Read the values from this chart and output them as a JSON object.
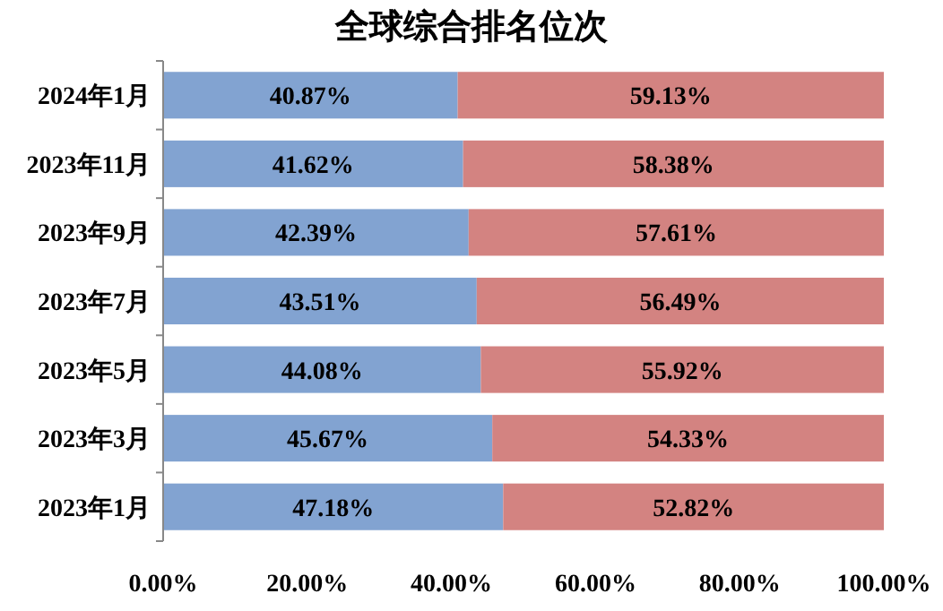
{
  "chart_data": {
    "type": "bar",
    "orientation": "horizontal",
    "stacked": true,
    "title": "全球综合排名位次",
    "categories": [
      "2024年1月",
      "2023年11月",
      "2023年9月",
      "2023年7月",
      "2023年5月",
      "2023年3月",
      "2023年1月"
    ],
    "series": [
      {
        "color": "#82a3d1",
        "values": [
          40.87,
          41.62,
          42.39,
          43.51,
          44.08,
          45.67,
          47.18
        ],
        "value_labels": [
          "40.87%",
          "41.62%",
          "42.39%",
          "43.51%",
          "44.08%",
          "45.67%",
          "47.18%"
        ]
      },
      {
        "color": "#d38381",
        "values": [
          59.13,
          58.38,
          57.61,
          56.49,
          55.92,
          54.33,
          52.82
        ],
        "value_labels": [
          "59.13%",
          "58.38%",
          "57.61%",
          "56.49%",
          "55.92%",
          "54.33%",
          "52.82%"
        ]
      }
    ],
    "xlim": [
      0,
      100
    ],
    "xticks": [
      {
        "value": 0,
        "label": "0.00%"
      },
      {
        "value": 20,
        "label": "20.00%"
      },
      {
        "value": 40,
        "label": "40.00%"
      },
      {
        "value": 60,
        "label": "60.00%"
      },
      {
        "value": 80,
        "label": "80.00%"
      },
      {
        "value": 100,
        "label": "100.00%"
      }
    ]
  }
}
